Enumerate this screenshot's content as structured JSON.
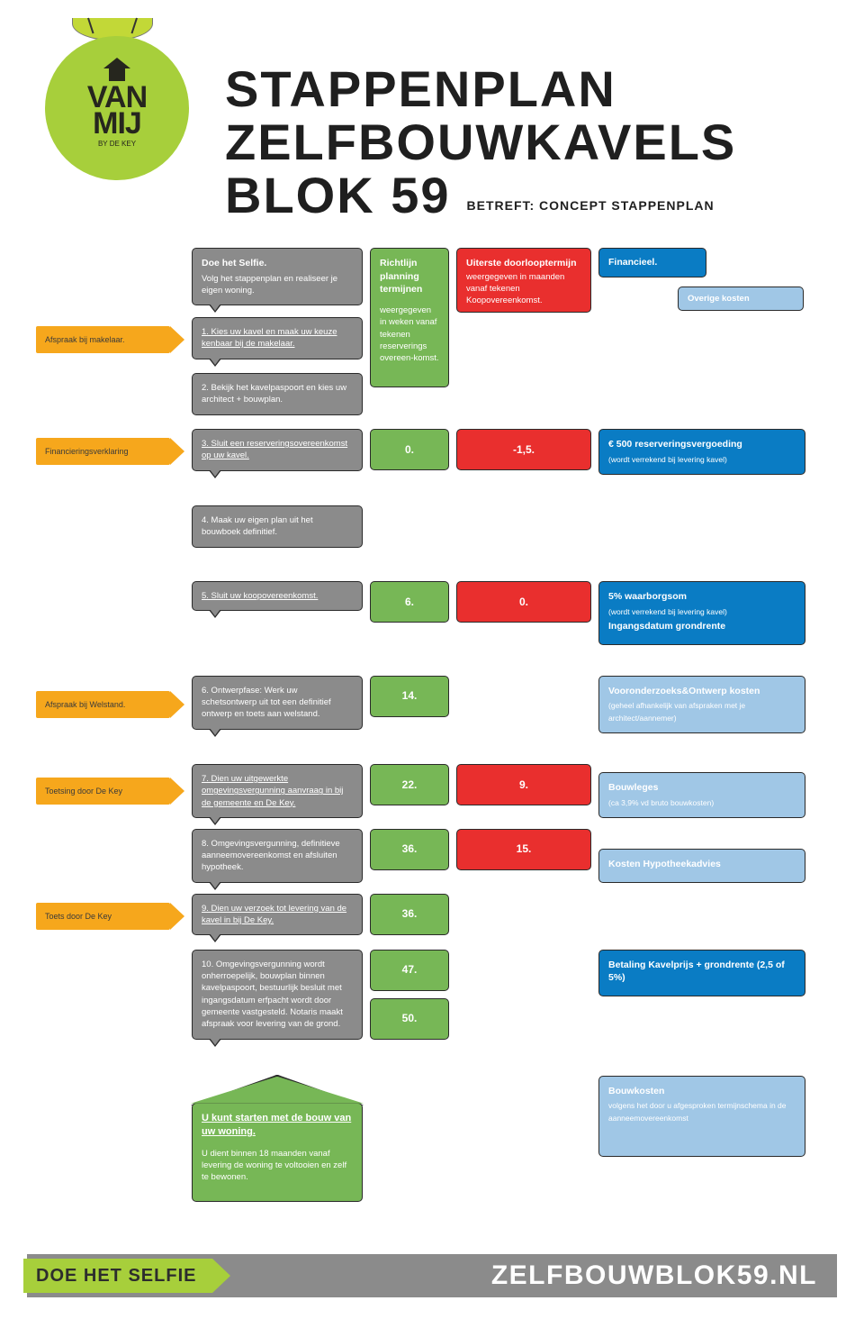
{
  "colors": {
    "accent_green": "#a7cf3b",
    "step_gray": "#8b8b8b",
    "timeline_green": "#77b756",
    "deadline_red": "#e92f2e",
    "finance_blue": "#0a7cc4",
    "cost_lightblue": "#a0c7e6",
    "arrow_orange": "#f6a71c",
    "text_dark": "#1f1f1f",
    "border": "#2a2a2a"
  },
  "logo": {
    "line1": "VAN",
    "line2": "MIJ",
    "sub": "BY DE KEY"
  },
  "title": {
    "line1": "STAPPENPLAN",
    "line2": "ZELFBOUWKAVELS",
    "line3": "BLOK 59"
  },
  "subtitle": "BETREFT: CONCEPT STAPPENPLAN",
  "legend": {
    "selfie_title": "Doe het Selfie.",
    "selfie_body": "Volg het stappenplan en realiseer je eigen woning.",
    "green_title": "Richtlijn planning termijnen",
    "green_body": "weergegeven in weken vanaf tekenen reserverings overeen-komst.",
    "red_title": "Uiterste doorlooptermijn",
    "red_body": "weergegeven in maanden vanaf tekenen Koopovereenkomst.",
    "blue_title": "Financieel.",
    "lightblue_title": "Overige kosten"
  },
  "rows": [
    {
      "arrow": "Afspraak bij makelaar.",
      "step": "1. Kies uw kavel en maak uw keuze kenbaar bij de makelaar.",
      "step_underline": true
    },
    {
      "step": "2. Bekijk het kavelpaspoort en kies uw architect + bouwplan."
    },
    {
      "arrow": "Financieringsverklaring",
      "step": "3. Sluit een reserveringsovereenkomst op uw kavel.",
      "step_underline": true,
      "green": "0.",
      "red": "-1,5.",
      "blue_title": "€ 500 reserveringsvergoeding",
      "blue_body": "(wordt verrekend bij levering kavel)",
      "gap_after": true
    },
    {
      "step": "4. Maak uw eigen plan uit het bouwboek definitief.",
      "gap_after": true
    },
    {
      "step": "5. Sluit uw koopovereenkomst.",
      "step_underline": true,
      "green": "6.",
      "red": "0.",
      "blue_title": "5% waarborgsom",
      "blue_body": "(wordt verrekend bij levering kavel)",
      "blue_extra": "Ingangsdatum grondrente",
      "gap_after": true
    },
    {
      "arrow": "Afspraak bij Welstand.",
      "step": "6. Ontwerpfase: Werk uw schetsontwerp uit tot een definitief ontwerp en toets aan welstand.",
      "green": "14.",
      "lb_title": "Vooronderzoeks&Ontwerp kosten",
      "lb_body": "(geheel afhankelijk van afspraken met je architect/aannemer)",
      "gap_after": true
    },
    {
      "arrow": "Toetsing door De Key",
      "step": "7. Dien uw uitgewerkte omgevingsvergunning aanvraag in bij de gemeente en De Key.",
      "step_underline": true,
      "green": "22.",
      "red": "9.",
      "lb_title": "Bouwleges",
      "lb_body": "(ca 3,9% vd bruto bouwkosten)"
    },
    {
      "step": "8. Omgevingsvergunning, definitieve aanneemovereenkomst en afsluiten hypotheek.",
      "green": "36.",
      "red": "15.",
      "lb_title": "Kosten Hypotheekadvies"
    },
    {
      "arrow": "Toets door De Key",
      "step": "9. Dien uw verzoek tot levering van de kavel in bij De Key.",
      "step_underline": true,
      "green": "36."
    },
    {
      "step": "10. Omgevingsvergunning wordt onherroepelijk, bouwplan binnen kavelpaspoort, bestuurlijk besluit met ingangsdatum erfpacht wordt door gemeente vastgesteld. Notaris maakt afspraak voor levering van de grond.",
      "green": "47.",
      "green2": "50.",
      "blue_title": "Betaling Kavelprijs + grondrente (2,5 of 5%)",
      "gap_after": true
    },
    {
      "house": true,
      "step_title": "U kunt starten met de bouw van uw woning.",
      "step": "U dient binnen 18 maanden vanaf levering de woning te voltooien en zelf te bewonen.",
      "lb_title": "Bouwkosten",
      "lb_body": "volgens het door u afgesproken termijnschema in de aanneemovereenkomst"
    }
  ],
  "footer": {
    "left": "DOE HET SELFIE",
    "right": "ZELFBOUWBLOK59.NL"
  }
}
